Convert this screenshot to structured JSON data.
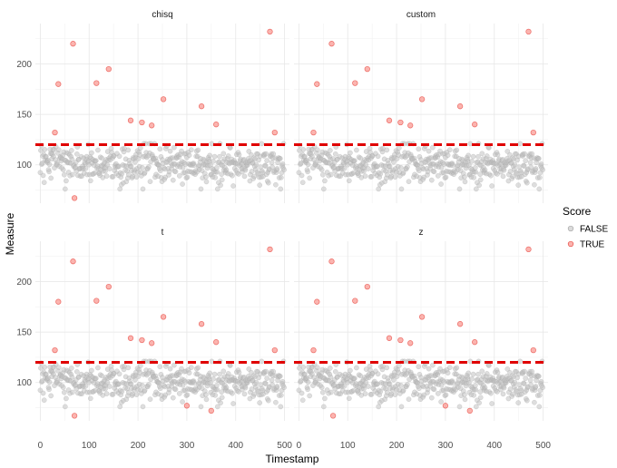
{
  "chart_data": {
    "type": "scatter",
    "xlabel": "Timestamp",
    "ylabel": "Measure",
    "xlim": [
      -10,
      510
    ],
    "ylim": [
      62,
      240
    ],
    "x_ticks": [
      0,
      100,
      200,
      300,
      400,
      500
    ],
    "y_ticks": [
      100,
      150,
      200
    ],
    "threshold": 120,
    "grid": true,
    "legend": {
      "title": "Score",
      "placement": "right",
      "entries": [
        {
          "label": "FALSE",
          "color": "#bdbdbd"
        },
        {
          "label": "TRUE",
          "color": "#f8766d"
        }
      ]
    },
    "colors": {
      "false": "#bdbdbd",
      "true": "#f8766d",
      "threshold": "#e00000"
    },
    "panels": [
      {
        "name": "chisq",
        "outliers": [
          [
            30,
            132
          ],
          [
            37,
            180
          ],
          [
            67,
            220
          ],
          [
            70,
            67
          ],
          [
            115,
            181
          ],
          [
            140,
            195
          ],
          [
            185,
            144
          ],
          [
            208,
            142
          ],
          [
            228,
            139
          ],
          [
            252,
            165
          ],
          [
            330,
            158
          ],
          [
            360,
            140
          ],
          [
            470,
            232
          ],
          [
            480,
            132
          ]
        ]
      },
      {
        "name": "custom",
        "outliers": [
          [
            30,
            132
          ],
          [
            37,
            180
          ],
          [
            67,
            220
          ],
          [
            115,
            181
          ],
          [
            140,
            195
          ],
          [
            185,
            144
          ],
          [
            208,
            142
          ],
          [
            228,
            139
          ],
          [
            252,
            165
          ],
          [
            330,
            158
          ],
          [
            360,
            140
          ],
          [
            470,
            232
          ],
          [
            480,
            132
          ]
        ]
      },
      {
        "name": "t",
        "outliers": [
          [
            30,
            132
          ],
          [
            37,
            180
          ],
          [
            67,
            220
          ],
          [
            70,
            67
          ],
          [
            115,
            181
          ],
          [
            140,
            195
          ],
          [
            185,
            144
          ],
          [
            208,
            142
          ],
          [
            228,
            139
          ],
          [
            252,
            165
          ],
          [
            300,
            77
          ],
          [
            330,
            158
          ],
          [
            350,
            72
          ],
          [
            360,
            140
          ],
          [
            470,
            232
          ],
          [
            480,
            132
          ]
        ]
      },
      {
        "name": "z",
        "outliers": [
          [
            30,
            132
          ],
          [
            37,
            180
          ],
          [
            67,
            220
          ],
          [
            70,
            67
          ],
          [
            115,
            181
          ],
          [
            140,
            195
          ],
          [
            185,
            144
          ],
          [
            208,
            142
          ],
          [
            228,
            139
          ],
          [
            252,
            165
          ],
          [
            300,
            77
          ],
          [
            330,
            158
          ],
          [
            350,
            72
          ],
          [
            360,
            140
          ],
          [
            470,
            232
          ],
          [
            480,
            132
          ]
        ]
      }
    ]
  }
}
